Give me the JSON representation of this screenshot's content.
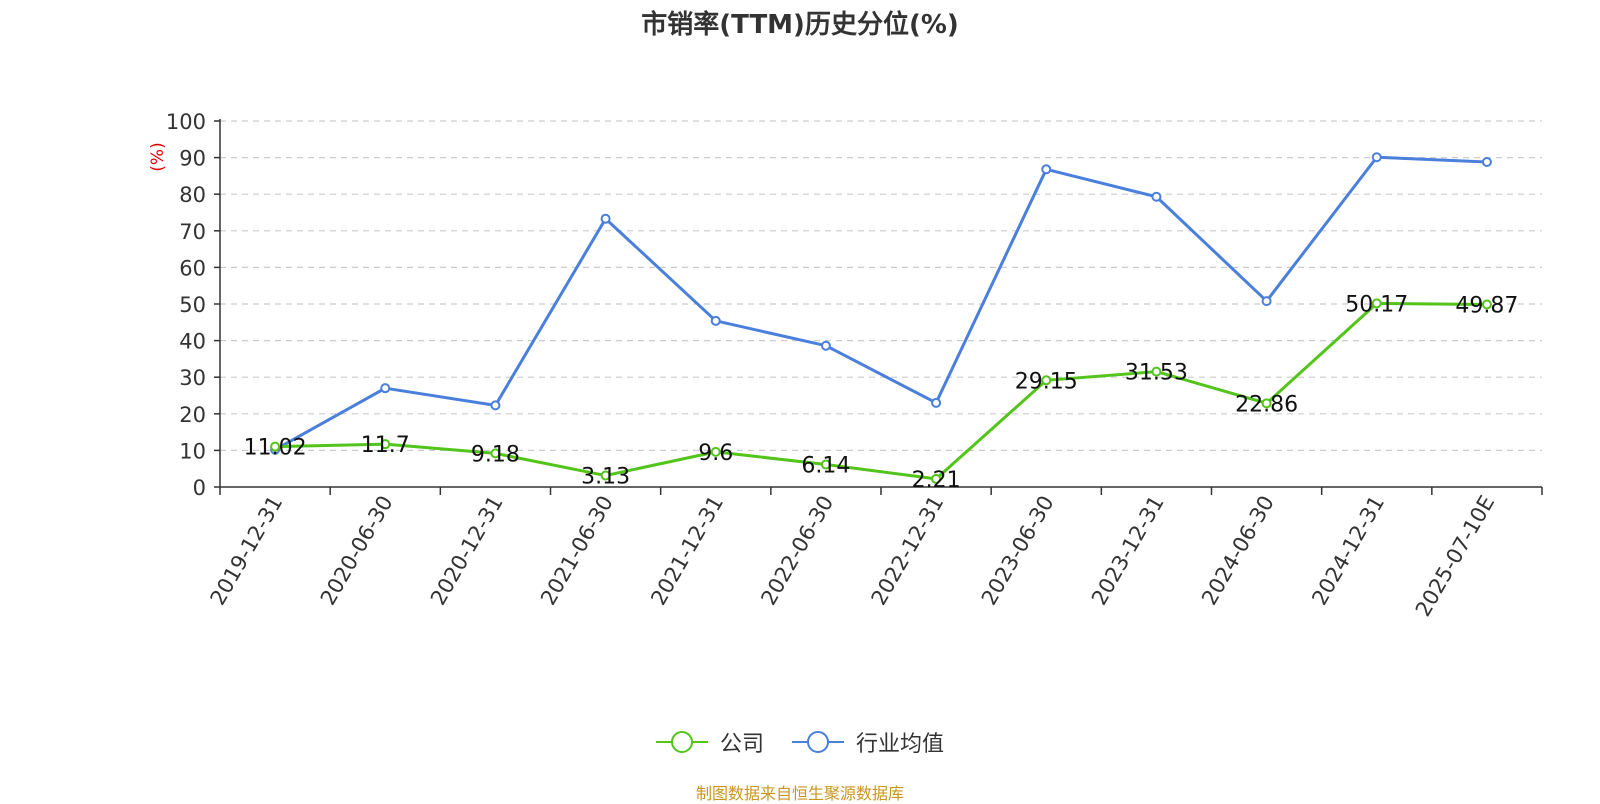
{
  "chart_data": {
    "type": "line",
    "title": "市销率(TTM)历史分位(%)",
    "ylabel": "(%)",
    "ylim": [
      0,
      100
    ],
    "yticks": [
      0,
      10,
      20,
      30,
      40,
      50,
      60,
      70,
      80,
      90,
      100
    ],
    "categories": [
      "2019-12-31",
      "2020-06-30",
      "2020-12-31",
      "2021-06-30",
      "2021-12-31",
      "2022-06-30",
      "2022-12-31",
      "2023-06-30",
      "2023-12-31",
      "2024-06-30",
      "2024-12-31",
      "2025-07-10E"
    ],
    "series": [
      {
        "name": "公司",
        "color": "#52c41a",
        "values": [
          11.02,
          11.7,
          9.18,
          3.13,
          9.6,
          6.14,
          2.21,
          29.15,
          31.53,
          22.86,
          50.17,
          49.87
        ],
        "labels": [
          "11.02",
          "11.7",
          "9.18",
          "3.13",
          "9.6",
          "6.14",
          "2.21",
          "29.15",
          "31.53",
          "22.86",
          "50.17",
          "49.87"
        ]
      },
      {
        "name": "行业均值",
        "color": "#4a7fdc",
        "values": [
          10.2,
          27.0,
          22.3,
          73.3,
          45.4,
          38.6,
          23.0,
          86.8,
          79.3,
          50.8,
          90.1,
          88.8
        ]
      }
    ],
    "grid": true,
    "legend_position": "bottom"
  },
  "source_note": "制图数据来自恒生聚源数据库"
}
